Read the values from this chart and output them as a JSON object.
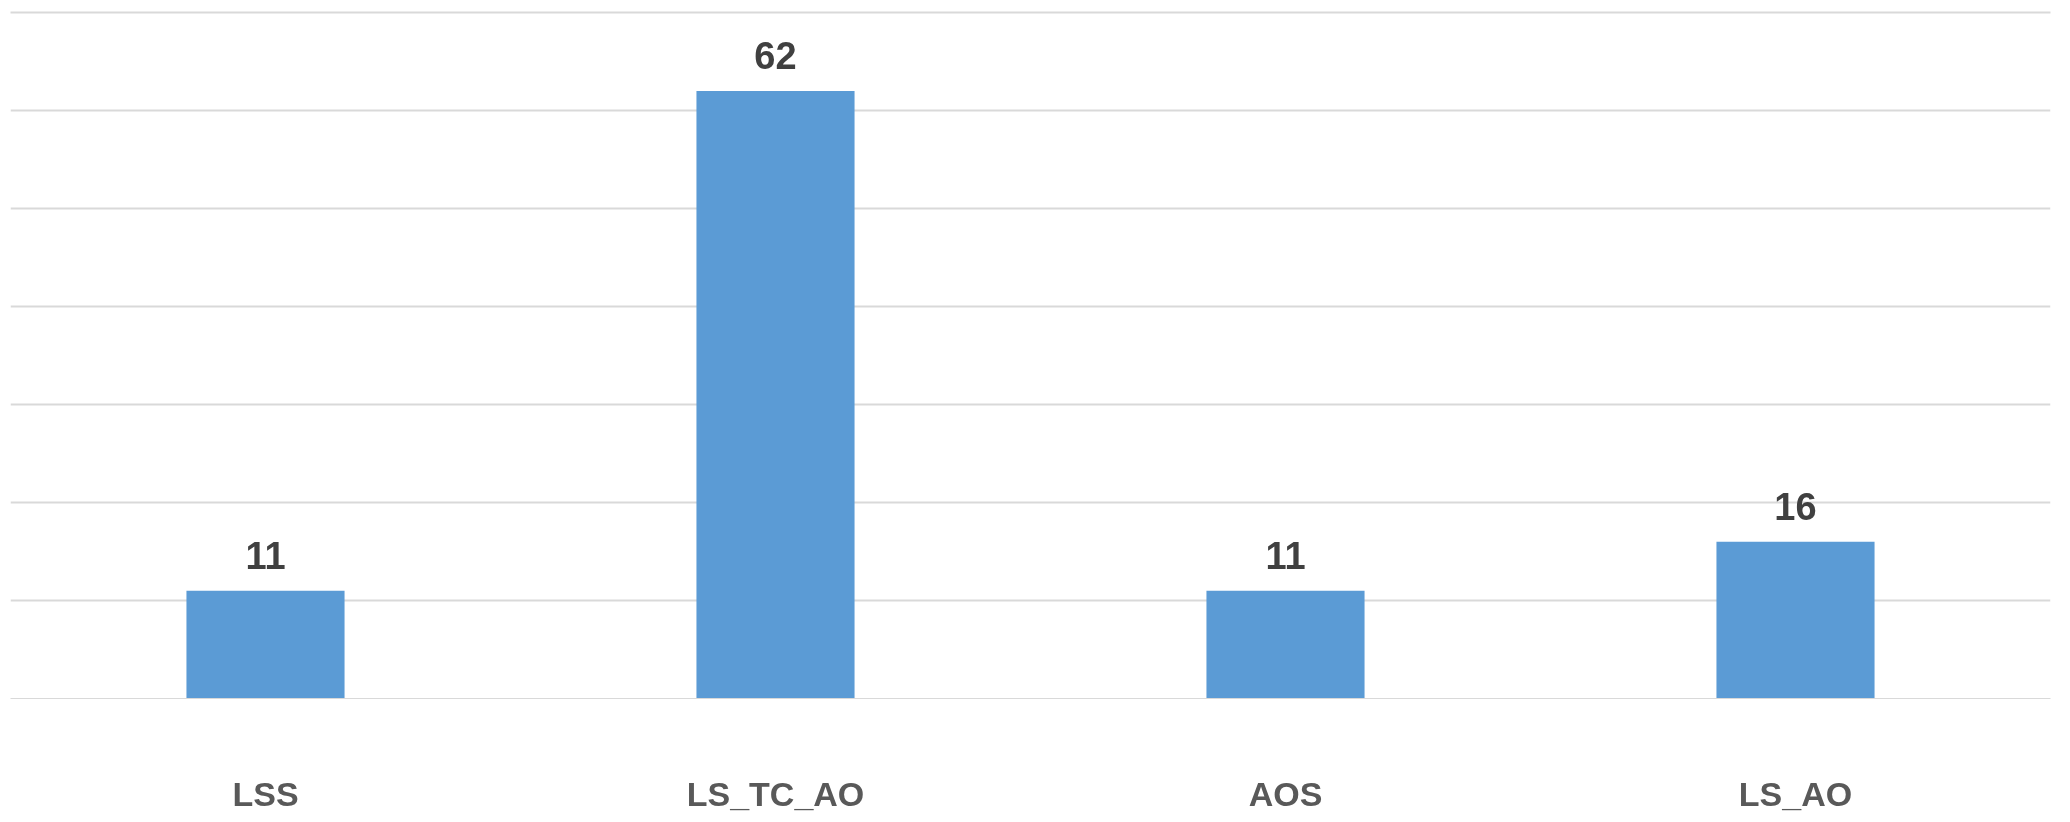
{
  "chart_data": {
    "type": "bar",
    "categories": [
      "LSS",
      "LS_TC_AO",
      "AOS",
      "LS_AO"
    ],
    "values": [
      11,
      62,
      11,
      16
    ],
    "color": "#5b9bd5",
    "data_labels": true,
    "ylim": [
      0,
      70
    ],
    "yticks": [
      {
        "value": 0,
        "label": null
      },
      {
        "value": 10,
        "label": null
      },
      {
        "value": 20,
        "label": null
      },
      {
        "value": 30,
        "label": null
      },
      {
        "value": 40,
        "label": null
      },
      {
        "value": 50,
        "label": null
      },
      {
        "value": 60,
        "label": null
      },
      {
        "value": 70,
        "label": null
      }
    ],
    "grid": "y",
    "tick_labels": "x"
  }
}
